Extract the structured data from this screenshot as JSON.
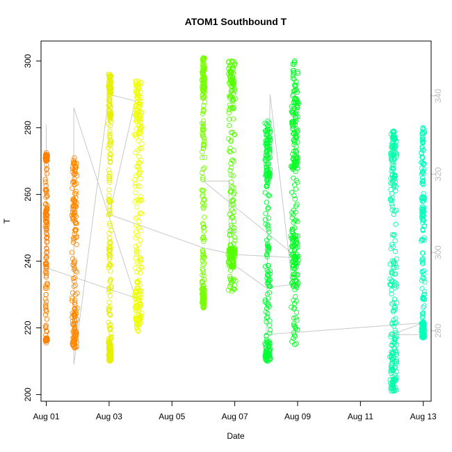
{
  "chart_data": {
    "type": "scatter",
    "title": "ATOM1 Southbound T",
    "xlabel": "Date",
    "ylabel": "T",
    "y2label": "",
    "xlim": [
      "2017-07-31T20:00",
      "2017-08-13T06:00"
    ],
    "ylim": [
      198,
      306
    ],
    "y2lim": [
      262,
      354
    ],
    "x_ticks": [
      {
        "date": "2017-08-01",
        "label": "Aug 01"
      },
      {
        "date": "2017-08-03",
        "label": "Aug 03"
      },
      {
        "date": "2017-08-05",
        "label": "Aug 05"
      },
      {
        "date": "2017-08-07",
        "label": "Aug 07"
      },
      {
        "date": "2017-08-09",
        "label": "Aug 09"
      },
      {
        "date": "2017-08-11",
        "label": "Aug 11"
      },
      {
        "date": "2017-08-13",
        "label": "Aug 13"
      }
    ],
    "y_ticks": [
      200,
      220,
      240,
      260,
      280,
      300
    ],
    "y2_ticks": [
      280,
      300,
      320,
      340
    ],
    "grid": false,
    "colors": {
      "secondary_line": "#c8c8c8",
      "axis": "#000000",
      "right_axis": "#bdbdbd"
    },
    "series": [
      {
        "date": "2017-08-01",
        "color": "#ff8000",
        "segments": [
          {
            "start": "2017-08-01T00:00",
            "end": "2017-08-01T00:05",
            "y_min": 215.5,
            "y_max": 272.5,
            "dense": [
              [
                246,
                256
              ],
              [
                216,
                217
              ],
              [
                270,
                272
              ]
            ]
          }
        ]
      },
      {
        "date": "2017-08-02",
        "color": "#ff8800",
        "segments": [
          {
            "start": "2017-08-01T20:00",
            "end": "2017-08-01T23:00",
            "y_min": 214,
            "y_max": 271,
            "dense": [
              [
                214,
                225
              ],
              [
                250,
                270
              ]
            ]
          }
        ]
      },
      {
        "date": "2017-08-03",
        "color": "#e6f000",
        "segments": [
          {
            "start": "2017-08-03T00:00",
            "end": "2017-08-03T01:00",
            "y_min": 210,
            "y_max": 296,
            "dense": [
              [
                210,
                216
              ],
              [
                282,
                296
              ]
            ]
          }
        ]
      },
      {
        "date": "2017-08-04",
        "color": "#eeff00",
        "segments": [
          {
            "start": "2017-08-03T20:00",
            "end": "2017-08-04T00:30",
            "y_min": 219,
            "y_max": 294,
            "dense": [
              [
                219,
                234
              ],
              [
                276,
                294
              ]
            ]
          }
        ]
      },
      {
        "date": "2017-08-06",
        "color": "#77ff00",
        "segments": [
          {
            "start": "2017-08-05T23:30",
            "end": "2017-08-06T00:30",
            "y_min": 226,
            "y_max": 301,
            "dense": [
              [
                226,
                232
              ],
              [
                290,
                301
              ]
            ]
          }
        ]
      },
      {
        "date": "2017-08-07",
        "color": "#55ff00",
        "segments": [
          {
            "start": "2017-08-06T19:30",
            "end": "2017-08-07T00:00",
            "y_min": 231,
            "y_max": 300,
            "dense": [
              [
                238,
                244
              ],
              [
                288,
                300
              ]
            ]
          }
        ]
      },
      {
        "date": "2017-08-08",
        "color": "#00ff33",
        "segments": [
          {
            "start": "2017-08-07T23:30",
            "end": "2017-08-08T03:00",
            "y_min": 210,
            "y_max": 282,
            "dense": [
              [
                210,
                216
              ],
              [
                264,
                280
              ]
            ]
          }
        ]
      },
      {
        "date": "2017-08-09",
        "color": "#00ff22",
        "segments": [
          {
            "start": "2017-08-08T19:30",
            "end": "2017-08-09T00:00",
            "y_min": 215,
            "y_max": 300,
            "dense": [
              [
                232,
                250
              ],
              [
                268,
                292
              ]
            ]
          }
        ]
      },
      {
        "date": "2017-08-12",
        "color": "#00ffaa",
        "segments": [
          {
            "start": "2017-08-11T23:00",
            "end": "2017-08-12T03:30",
            "y_min": 201,
            "y_max": 279,
            "dense": [
              [
                201,
                214
              ],
              [
                262,
                279
              ]
            ]
          }
        ]
      },
      {
        "date": "2017-08-13",
        "color": "#00ffbb",
        "segments": [
          {
            "start": "2017-08-12T23:00",
            "end": "2017-08-13T00:30",
            "y_min": 217,
            "y_max": 280,
            "dense": [
              [
                217,
                222
              ],
              [
                250,
                280
              ]
            ]
          }
        ]
      }
    ],
    "secondary_line": [
      [
        "2017-07-31T23:58",
        281
      ],
      [
        "2017-08-01T00:00",
        281
      ],
      [
        "2017-08-01T00:00",
        238
      ],
      [
        "2017-08-03T20:00",
        229
      ],
      [
        "2017-08-03T20:10",
        229
      ],
      [
        "2017-08-01T21:00",
        286
      ],
      [
        "2017-08-01T21:05",
        209
      ],
      [
        "2017-08-03T00:00",
        290
      ],
      [
        "2017-08-03T20:00",
        288
      ],
      [
        "2017-08-03T00:10",
        254
      ],
      [
        "2017-08-06T00:00",
        244
      ],
      [
        "2017-08-07T00:00",
        242
      ],
      [
        "2017-08-09T00:00",
        241
      ],
      [
        "2017-08-06T00:00",
        264
      ],
      [
        "2017-08-06T19:30",
        264
      ],
      [
        "2017-08-06T19:40",
        240
      ],
      [
        "2017-08-08T00:00",
        232
      ],
      [
        "2017-08-08T20:00",
        233
      ],
      [
        "2017-08-08T03:00",
        290
      ],
      [
        "2017-08-08T00:00",
        218
      ],
      [
        "2017-08-13T00:00",
        221.5
      ],
      [
        "2017-08-12T00:00",
        218
      ],
      [
        "2017-08-13T00:00",
        218
      ]
    ]
  }
}
